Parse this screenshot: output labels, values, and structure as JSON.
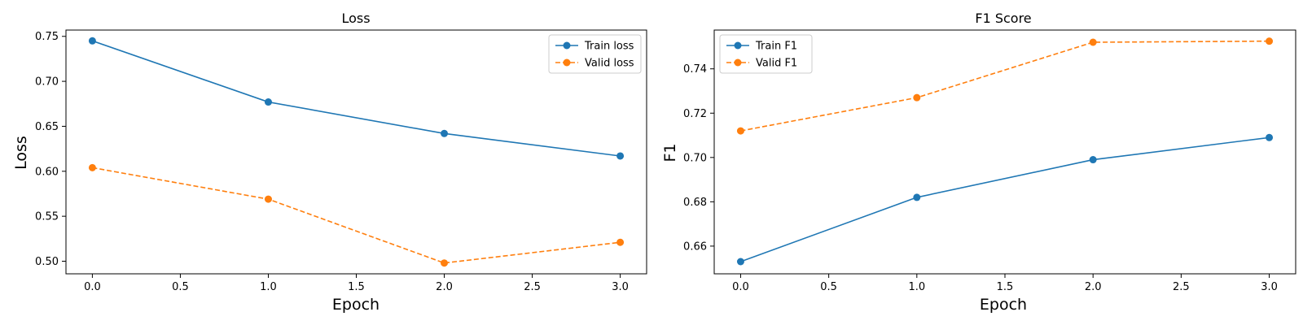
{
  "chart_data": [
    {
      "type": "line",
      "title": "Loss",
      "xlabel": "Epoch",
      "ylabel": "Loss",
      "x": [
        0,
        1,
        2,
        3
      ],
      "xlim": [
        -0.15,
        3.15
      ],
      "ylim": [
        0.486,
        0.757
      ],
      "xticks": [
        0.0,
        0.5,
        1.0,
        1.5,
        2.0,
        2.5,
        3.0
      ],
      "xtick_labels": [
        "0.0",
        "0.5",
        "1.0",
        "1.5",
        "2.0",
        "2.5",
        "3.0"
      ],
      "yticks": [
        0.5,
        0.55,
        0.6,
        0.65,
        0.7,
        0.75
      ],
      "ytick_labels": [
        "0.50",
        "0.55",
        "0.60",
        "0.65",
        "0.70",
        "0.75"
      ],
      "grid": false,
      "legend_position": "top-right",
      "series": [
        {
          "name": "Train loss",
          "values": [
            0.745,
            0.677,
            0.642,
            0.617
          ],
          "color": "#1f77b4",
          "linestyle": "solid",
          "marker": "circle"
        },
        {
          "name": "Valid loss",
          "values": [
            0.604,
            0.569,
            0.498,
            0.521
          ],
          "color": "#ff7f0e",
          "linestyle": "dashed",
          "marker": "circle"
        }
      ]
    },
    {
      "type": "line",
      "title": "F1 Score",
      "xlabel": "Epoch",
      "ylabel": "F1",
      "x": [
        0,
        1,
        2,
        3
      ],
      "xlim": [
        -0.15,
        3.15
      ],
      "ylim": [
        0.6475,
        0.7575
      ],
      "xticks": [
        0.0,
        0.5,
        1.0,
        1.5,
        2.0,
        2.5,
        3.0
      ],
      "xtick_labels": [
        "0.0",
        "0.5",
        "1.0",
        "1.5",
        "2.0",
        "2.5",
        "3.0"
      ],
      "yticks": [
        0.66,
        0.68,
        0.7,
        0.72,
        0.74
      ],
      "ytick_labels": [
        "0.66",
        "0.68",
        "0.70",
        "0.72",
        "0.74"
      ],
      "grid": false,
      "legend_position": "top-left",
      "series": [
        {
          "name": "Train F1",
          "values": [
            0.653,
            0.682,
            0.699,
            0.709
          ],
          "color": "#1f77b4",
          "linestyle": "solid",
          "marker": "circle"
        },
        {
          "name": "Valid F1",
          "values": [
            0.712,
            0.727,
            0.752,
            0.7525
          ],
          "color": "#ff7f0e",
          "linestyle": "dashed",
          "marker": "circle"
        }
      ]
    }
  ]
}
